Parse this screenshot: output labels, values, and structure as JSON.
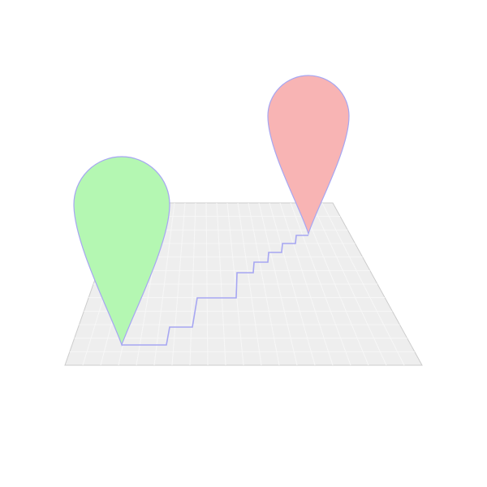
{
  "illustration": {
    "icon": "route-map-icon",
    "map": {
      "icon": "map-grid-icon",
      "fill": "#eeeeee",
      "stroke": "#cccccc",
      "grid_color": "#f7f7f7"
    },
    "start_pin": {
      "icon": "map-pin-icon",
      "fill": "#b4f7b2",
      "stroke": "#a6a6f2"
    },
    "end_pin": {
      "icon": "map-pin-icon",
      "fill": "#f8b4b4",
      "stroke": "#a6a6f2"
    },
    "route": {
      "icon": "route-path-icon",
      "stroke": "#a6a6f2"
    }
  }
}
